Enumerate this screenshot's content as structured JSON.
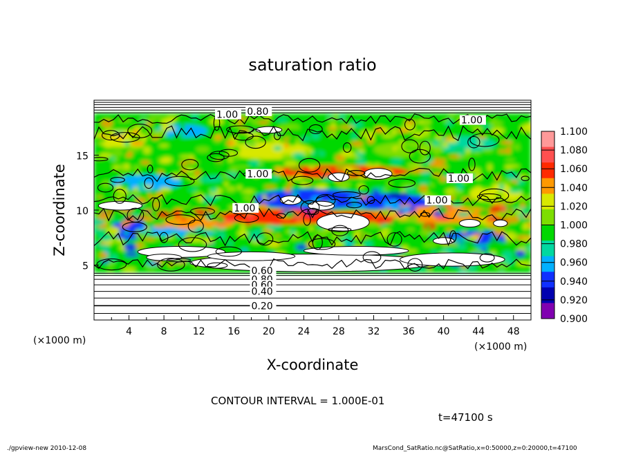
{
  "chart_data": {
    "type": "heatmap",
    "title": "saturation ratio",
    "xlabel": "X-coordinate",
    "ylabel": "Z-coordinate",
    "x_unit_left": "(×1000 m)",
    "x_unit_right": "(×1000 m)",
    "xlim": [
      0,
      50
    ],
    "ylim": [
      0,
      20
    ],
    "xticks": [
      "4",
      "8",
      "12",
      "16",
      "20",
      "24",
      "28",
      "32",
      "36",
      "40",
      "44",
      "48"
    ],
    "xtick_values": [
      4,
      8,
      12,
      16,
      20,
      24,
      28,
      32,
      36,
      40,
      44,
      48
    ],
    "yticks": [
      "5",
      "10",
      "15"
    ],
    "ytick_values": [
      5,
      10,
      15
    ],
    "colorbar": {
      "labels": [
        "1.100",
        "1.080",
        "1.060",
        "1.040",
        "1.020",
        "1.000",
        "0.980",
        "0.960",
        "0.940",
        "0.920",
        "0.900"
      ],
      "values": [
        1.1,
        1.08,
        1.06,
        1.04,
        1.02,
        1.0,
        0.98,
        0.96,
        0.94,
        0.92,
        0.9
      ],
      "colors": [
        "#ff9999",
        "#ff5050",
        "#ff2a00",
        "#ff9900",
        "#d8e800",
        "#7dde00",
        "#00d800",
        "#00d8a0",
        "#00b0ff",
        "#1030ff",
        "#0000b0",
        "#8000b0"
      ]
    },
    "contour_labels": [
      {
        "text": "0.80",
        "x": 17.5,
        "z": 19.0
      },
      {
        "text": "1.00",
        "x": 14.0,
        "z": 18.7
      },
      {
        "text": "1.00",
        "x": 42.0,
        "z": 18.2
      },
      {
        "text": "1.00",
        "x": 17.5,
        "z": 13.3
      },
      {
        "text": "1.00",
        "x": 40.5,
        "z": 12.9
      },
      {
        "text": "1.00",
        "x": 38.0,
        "z": 10.9
      },
      {
        "text": "1.00",
        "x": 16.0,
        "z": 10.2
      },
      {
        "text": "0.60",
        "x": 18.0,
        "z": 4.5
      },
      {
        "text": "0.80",
        "x": 18.0,
        "z": 3.7
      },
      {
        "text": "0.60",
        "x": 18.0,
        "z": 3.2
      },
      {
        "text": "0.40",
        "x": 18.0,
        "z": 2.6
      },
      {
        "text": "0.20",
        "x": 18.0,
        "z": 1.3
      }
    ],
    "regions": {
      "mixed_layer_z": [
        4.3,
        18.8
      ],
      "dry_below_z": [
        0,
        4.3
      ],
      "dry_above_z": [
        18.8,
        20
      ]
    }
  },
  "annotations": {
    "contour_interval": "CONTOUR INTERVAL = 1.000E-01",
    "time": "t=47100 s",
    "footer_left": "./gpview-new   2010-12-08",
    "footer_right": "MarsCond_SatRatio.nc@SatRatio,x=0:50000,z=0:20000,t=47100"
  }
}
